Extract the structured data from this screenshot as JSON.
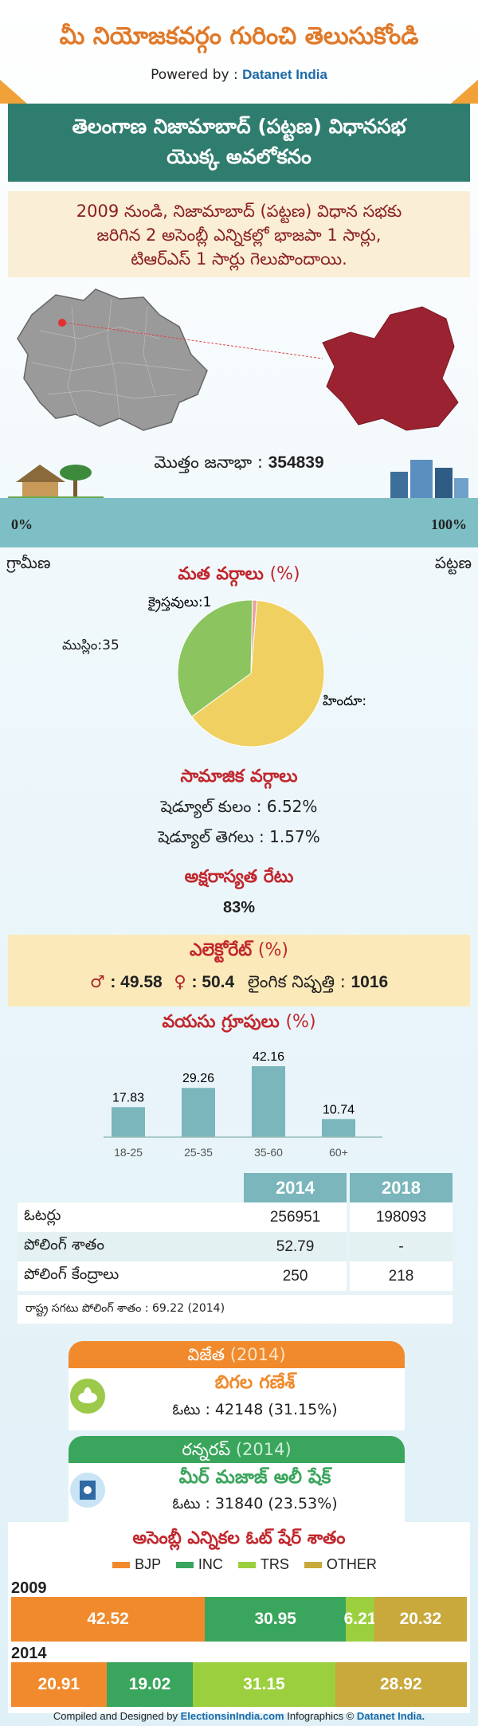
{
  "header": {
    "title": "మీ నియోజకవర్గం గురించి తెలుసుకోండి",
    "powered_prefix": "Powered by :",
    "powered_brand": "Datanet India"
  },
  "banner": {
    "line1": "తెలంగాణ నిజామాబాద్ (పట్టణ) విధానసభ",
    "line2": "యొక్క అవలోకనం"
  },
  "summary": {
    "line1": "2009 నుండి, నిజామాబాద్ (పట్టణ) విధాన సభకు",
    "line2": "జరిగిన 2 అసెంబ్లీ ఎన్నికల్లో భాజపా 1 సార్లు,",
    "line3": "టిఆర్ఎస్ 1 సార్లు గెలుపొందాయి."
  },
  "population": {
    "label": "మొత్తం జనాభా :",
    "value": "354839",
    "left_pct": "0%",
    "right_pct": "100%",
    "rural_label": "గ్రామీణ",
    "urban_label": "పట్టణ",
    "urban_share": 1.0
  },
  "religion": {
    "title": "మత వర్గాలు",
    "unit": "(%)",
    "slices": [
      {
        "label": "హిందూ",
        "value": 63,
        "color": "#f0d060"
      },
      {
        "label": "ముస్లిం",
        "value": 35,
        "color": "#8cc460"
      },
      {
        "label": "క్రైస్తవులు",
        "value": 1,
        "color": "#e8a0a0"
      }
    ]
  },
  "social": {
    "title": "సామాజిక వర్గాలు",
    "sc_label": "షెడ్యూల్ కులం :",
    "sc_value": "6.52%",
    "st_label": "షెడ్యూల్ తెగలు :",
    "st_value": "1.57%"
  },
  "literacy": {
    "title": "అక్షరాస్యత రేటు",
    "value": "83%"
  },
  "electorate": {
    "title": "ఎలెక్టోరేట్",
    "unit": "(%)",
    "male": "49.58",
    "female": "50.4",
    "ratio_label": "లైంగిక నిష్పత్తి :",
    "ratio_value": "1016"
  },
  "age": {
    "title": "వయసు గ్రూపులు",
    "unit": "(%)"
  },
  "chart_data": {
    "type": "bar",
    "title": "వయసు గ్రూపులు (%)",
    "categories": [
      "18-25",
      "25-35",
      "35-60",
      "60+"
    ],
    "values": [
      17.83,
      29.26,
      42.16,
      10.74
    ],
    "ylim": [
      0,
      45
    ]
  },
  "voters_table": {
    "headers": [
      "2014",
      "2018"
    ],
    "rows": [
      {
        "label": "ఓటర్లు",
        "v2014": "256951",
        "v2018": "198093"
      },
      {
        "label": "పోలింగ్ శాతం",
        "v2014": "52.79",
        "v2018": "-"
      },
      {
        "label": "పోలింగ్ కేంద్రాలు",
        "v2014": "250",
        "v2018": "218"
      }
    ],
    "state_avg": "రాష్ట్ర సగటు పోలింగ్ శాతం : 69.22 (2014)"
  },
  "winner": {
    "title": "విజేత",
    "year": "(2014)",
    "name": "బిగల గణేశ్",
    "votes": "ఓటు : 42148 (31.15%)",
    "color": "#f08a2c"
  },
  "runner": {
    "title": "రన్నరప్",
    "year": "(2014)",
    "name": "మీర్ మజాజ్ అలీ షేక్",
    "votes": "ఓటు : 31840 (23.53%)",
    "color": "#3aa55c"
  },
  "vote_share": {
    "title": "అసెంబ్లీ ఎన్నికల ఓట్ షేర్ శాతం",
    "legend": [
      {
        "label": "BJP",
        "color": "#f08a2c"
      },
      {
        "label": "INC",
        "color": "#3aa55c"
      },
      {
        "label": "TRS",
        "color": "#9ccf3e"
      },
      {
        "label": "OTHER",
        "color": "#c9a83c"
      }
    ],
    "years": [
      {
        "year": "2009",
        "segments": [
          {
            "party": "BJP",
            "value": 42.52,
            "label": "42.52"
          },
          {
            "party": "INC",
            "value": 30.95,
            "label": "30.95"
          },
          {
            "party": "TRS",
            "value": 6.21,
            "label": "6.21"
          },
          {
            "party": "OTHER",
            "value": 20.32,
            "label": "20.32"
          }
        ]
      },
      {
        "year": "2014",
        "segments": [
          {
            "party": "BJP",
            "value": 20.91,
            "label": "20.91"
          },
          {
            "party": "INC",
            "value": 19.02,
            "label": "19.02"
          },
          {
            "party": "TRS",
            "value": 31.15,
            "label": "31.15"
          },
          {
            "party": "OTHER",
            "value": 28.92,
            "label": "28.92"
          }
        ]
      }
    ]
  },
  "footer": {
    "prefix": "Compiled and Designed by",
    "site": "ElectionsinIndia.com",
    "middle": "Infographics ©",
    "brand": "Datanet India."
  }
}
